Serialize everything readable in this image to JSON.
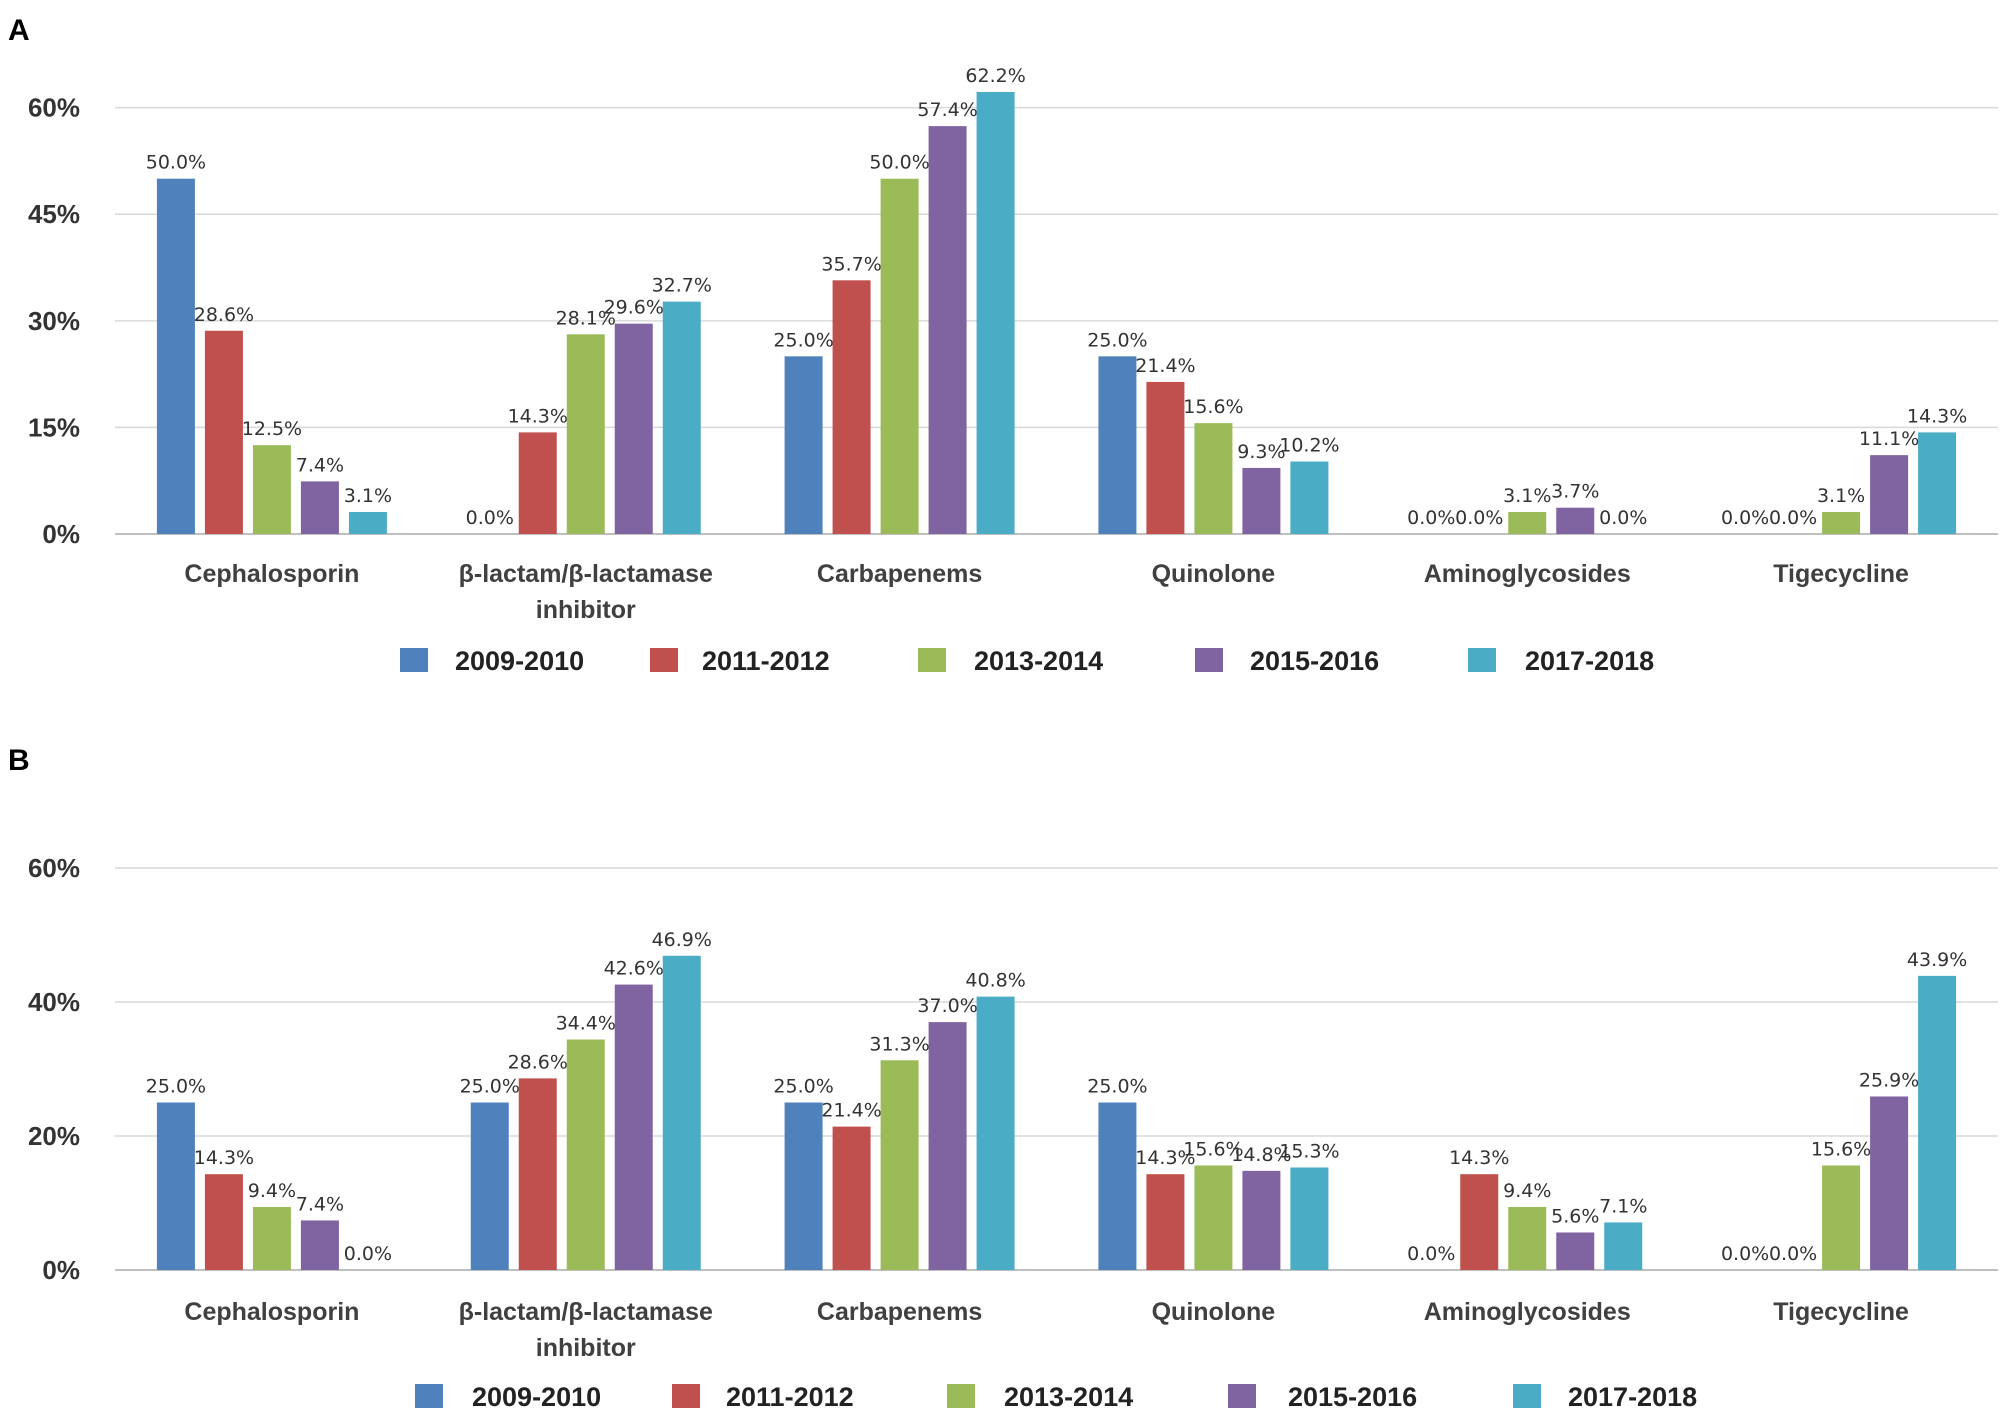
{
  "chart_data": [
    {
      "type": "bar",
      "panel": "A",
      "categories": [
        "Cephalosporin",
        "β-lactam/β-lactamase inhibitor",
        "Carbapenems",
        "Quinolone",
        "Aminoglycosides",
        "Tigecycline"
      ],
      "category_lines": [
        [
          "Cephalosporin"
        ],
        [
          "β-lactam/β-lactamase",
          "inhibitor"
        ],
        [
          "Carbapenems"
        ],
        [
          "Quinolone"
        ],
        [
          "Aminoglycosides"
        ],
        [
          "Tigecycline"
        ]
      ],
      "series": [
        {
          "name": "2009-2010",
          "values": [
            50.0,
            0.0,
            25.0,
            25.0,
            0.0,
            0.0
          ]
        },
        {
          "name": "2011-2012",
          "values": [
            28.6,
            14.3,
            35.7,
            21.4,
            0.0,
            0.0
          ]
        },
        {
          "name": "2013-2014",
          "values": [
            12.5,
            28.1,
            50.0,
            15.6,
            3.1,
            3.1
          ]
        },
        {
          "name": "2015-2016",
          "values": [
            7.4,
            29.6,
            57.4,
            9.3,
            3.7,
            11.1
          ]
        },
        {
          "name": "2017-2018",
          "values": [
            3.1,
            32.7,
            62.2,
            10.2,
            0.0,
            14.3
          ]
        }
      ],
      "yticks": [
        0,
        15,
        30,
        45,
        60
      ],
      "ytick_labels": [
        "0%",
        "15%",
        "30%",
        "45%",
        "60%"
      ],
      "ylim": [
        0,
        62.2
      ],
      "grid": true,
      "legend": "bottom"
    },
    {
      "type": "bar",
      "panel": "B",
      "categories": [
        "Cephalosporin",
        "β-lactam/β-lactamase inhibitor",
        "Carbapenems",
        "Quinolone",
        "Aminoglycosides",
        "Tigecycline"
      ],
      "category_lines": [
        [
          "Cephalosporin"
        ],
        [
          "β-lactam/β-lactamase",
          "inhibitor"
        ],
        [
          "Carbapenems"
        ],
        [
          "Quinolone"
        ],
        [
          "Aminoglycosides"
        ],
        [
          "Tigecycline"
        ]
      ],
      "series": [
        {
          "name": "2009-2010",
          "values": [
            25.0,
            25.0,
            25.0,
            25.0,
            0.0,
            0.0
          ]
        },
        {
          "name": "2011-2012",
          "values": [
            14.3,
            28.6,
            21.4,
            14.3,
            14.3,
            0.0
          ]
        },
        {
          "name": "2013-2014",
          "values": [
            9.4,
            34.4,
            31.3,
            15.6,
            9.4,
            15.6
          ]
        },
        {
          "name": "2015-2016",
          "values": [
            7.4,
            42.6,
            37.0,
            14.8,
            5.6,
            25.9
          ]
        },
        {
          "name": "2017-2018",
          "values": [
            0.0,
            46.9,
            40.8,
            15.3,
            7.1,
            43.9
          ]
        }
      ],
      "yticks": [
        0,
        20,
        40,
        60
      ],
      "ytick_labels": [
        "0%",
        "20%",
        "40%",
        "60%"
      ],
      "ylim": [
        0,
        60
      ],
      "grid": true,
      "legend": "bottom"
    }
  ],
  "colors": [
    "#4f81bd",
    "#c0504d",
    "#9bbb59",
    "#8064a2",
    "#4bacc6"
  ]
}
